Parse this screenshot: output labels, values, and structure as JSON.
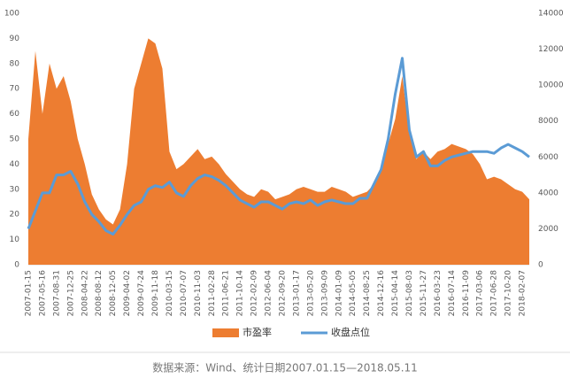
{
  "chart_data": {
    "type": "area-line",
    "categories": [
      "2007-01-15",
      null,
      "2007-05-16",
      null,
      "2007-08-31",
      null,
      "2007-12-25",
      null,
      "2008-04-22",
      null,
      "2008-08-12",
      null,
      "2008-12-05",
      null,
      "2009-04-02",
      null,
      "2009-07-24",
      null,
      "2009-11-18",
      null,
      "2010-03-15",
      null,
      "2010-07-07",
      null,
      "2010-11-03",
      null,
      "2011-02-28",
      null,
      "2011-06-21",
      null,
      "2011-10-14",
      null,
      "2012-02-09",
      null,
      "2012-06-04",
      null,
      "2012-09-20",
      null,
      "2013-01-17",
      null,
      "2013-05-20",
      null,
      "2013-09-09",
      null,
      "2014-01-09",
      null,
      "2014-05-05",
      null,
      "2014-08-25",
      null,
      "2014-12-16",
      null,
      "2015-04-14",
      null,
      "2015-08-03",
      null,
      "2015-11-27",
      null,
      "2016-03-23",
      null,
      "2016-07-14",
      null,
      "2016-11-09",
      null,
      "2017-03-06",
      null,
      "2017-06-28",
      null,
      "2017-10-20",
      null,
      "2018-02-07",
      null
    ],
    "series": [
      {
        "name": "市盈率",
        "color": "#ed7d31",
        "axis": "y",
        "values": [
          50,
          85,
          60,
          80,
          70,
          75,
          65,
          50,
          40,
          28,
          22,
          18,
          16,
          22,
          40,
          70,
          80,
          90,
          88,
          78,
          45,
          38,
          40,
          43,
          46,
          42,
          43,
          40,
          36,
          33,
          30,
          28,
          27,
          30,
          29,
          26,
          27,
          28,
          30,
          31,
          30,
          29,
          29,
          31,
          30,
          29,
          27,
          28,
          29,
          32,
          38,
          48,
          58,
          75,
          52,
          42,
          45,
          42,
          45,
          46,
          48,
          47,
          46,
          44,
          40,
          34,
          35,
          34,
          32,
          30,
          29,
          26
        ]
      },
      {
        "name": "收盘点位",
        "color": "#5b9bd5",
        "axis": "y2",
        "values": [
          2000,
          3000,
          4000,
          4000,
          5000,
          5000,
          5200,
          4500,
          3500,
          2800,
          2400,
          1900,
          1700,
          2200,
          2800,
          3300,
          3500,
          4200,
          4400,
          4300,
          4600,
          4000,
          3800,
          4400,
          4800,
          5000,
          4900,
          4700,
          4400,
          4000,
          3600,
          3400,
          3200,
          3500,
          3500,
          3300,
          3100,
          3400,
          3500,
          3400,
          3600,
          3300,
          3500,
          3600,
          3500,
          3400,
          3400,
          3700,
          3700,
          4500,
          5300,
          7000,
          9500,
          11500,
          7500,
          6000,
          6300,
          5500,
          5500,
          5800,
          6000,
          6100,
          6200,
          6300,
          6300,
          6300,
          6200,
          6500,
          6700,
          6500,
          6300,
          6000
        ]
      }
    ],
    "ylim": [
      0,
      100
    ],
    "yticks": [
      0,
      10,
      20,
      30,
      40,
      50,
      60,
      70,
      80,
      90,
      100
    ],
    "y2lim": [
      0,
      14000
    ],
    "y2ticks": [
      0,
      2000,
      4000,
      6000,
      8000,
      10000,
      12000,
      14000
    ],
    "legend": "bottom",
    "source": "数据来源：Wind、统计日期2007.01.15—2018.05.11"
  }
}
